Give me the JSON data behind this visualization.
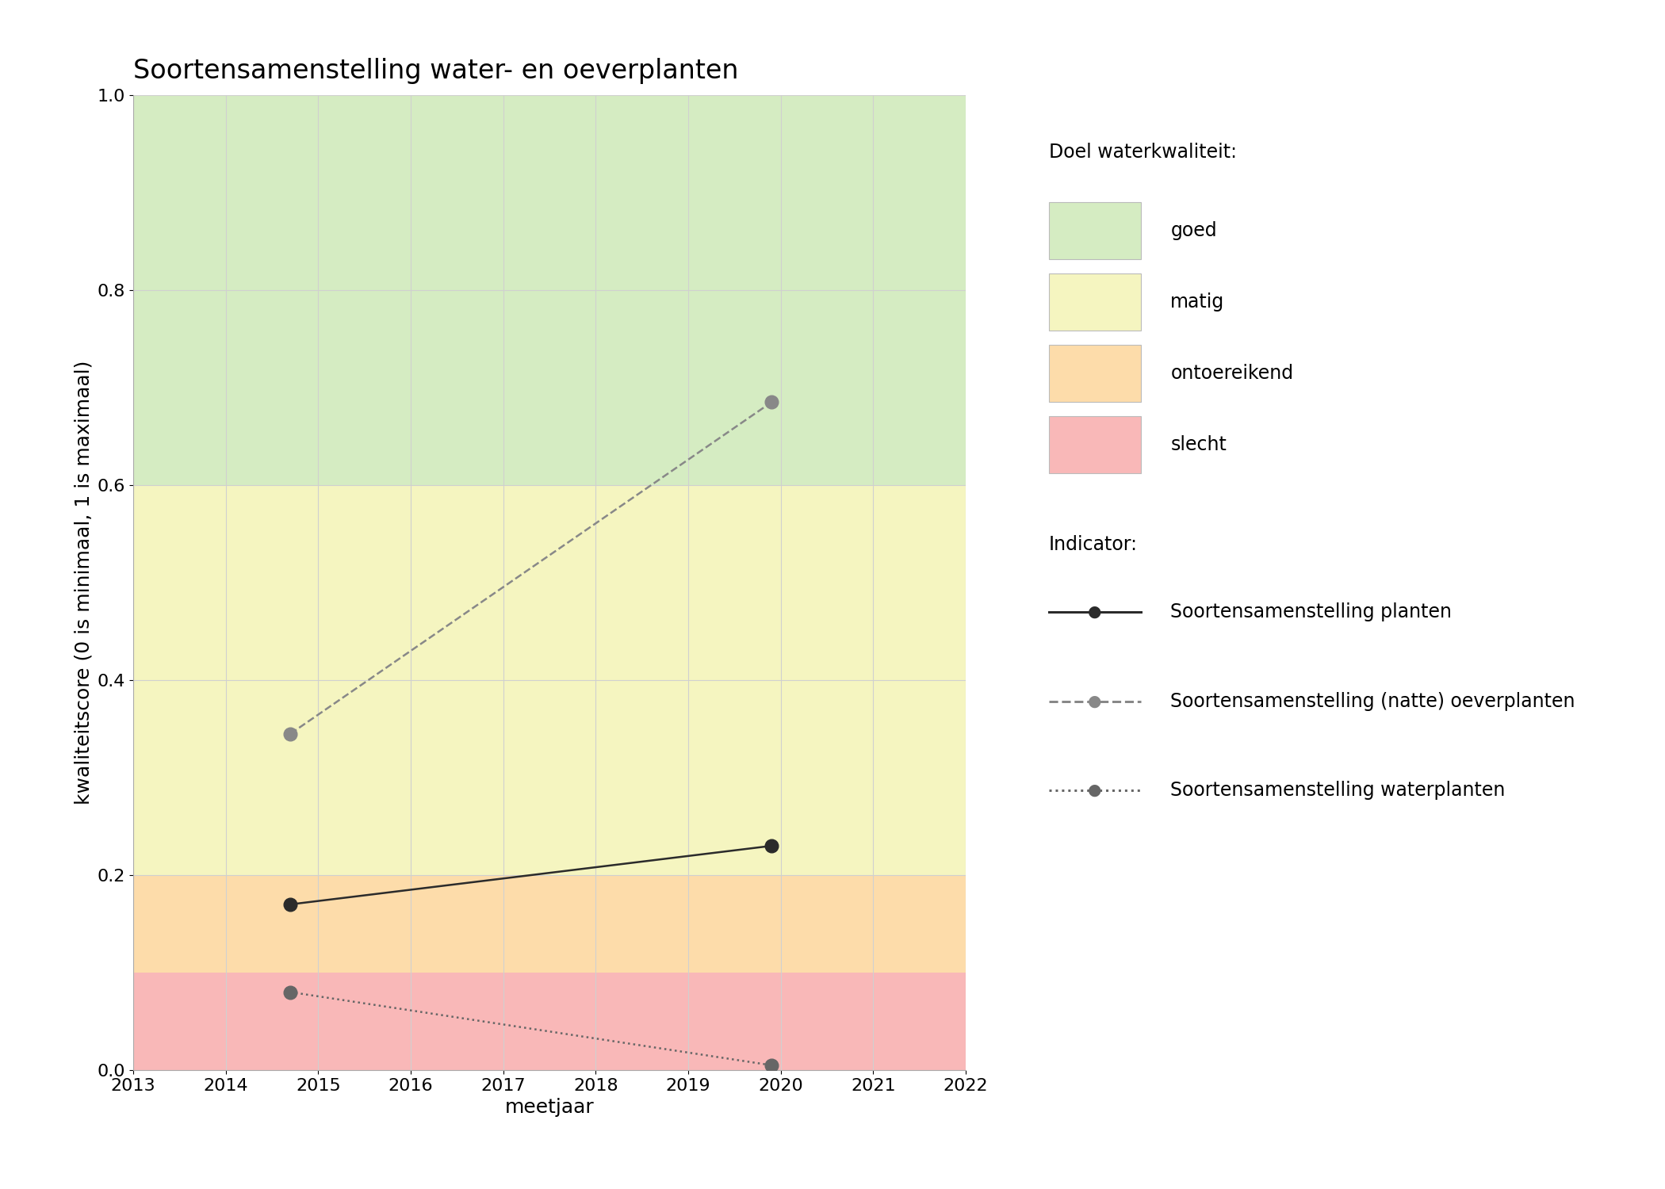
{
  "title": "Soortensamenstelling water- en oeverplanten",
  "xlabel": "meetjaar",
  "ylabel": "kwaliteitscore (0 is minimaal, 1 is maximaal)",
  "xlim": [
    2013,
    2022
  ],
  "ylim": [
    0.0,
    1.0
  ],
  "xticks": [
    2013,
    2014,
    2015,
    2016,
    2017,
    2018,
    2019,
    2020,
    2021,
    2022
  ],
  "yticks": [
    0.0,
    0.2,
    0.4,
    0.6,
    0.8,
    1.0
  ],
  "bg_colors": [
    {
      "name": "goed",
      "ymin": 0.6,
      "ymax": 1.0,
      "color": "#d5ecc2"
    },
    {
      "name": "matig",
      "ymin": 0.2,
      "ymax": 0.6,
      "color": "#f5f5c0"
    },
    {
      "name": "ontoereikend",
      "ymin": 0.1,
      "ymax": 0.2,
      "color": "#fddcaa"
    },
    {
      "name": "slecht",
      "ymin": 0.0,
      "ymax": 0.1,
      "color": "#f9b8b8"
    }
  ],
  "series": {
    "planten": {
      "x": [
        2014.7,
        2019.9
      ],
      "y": [
        0.17,
        0.23
      ],
      "color": "#2b2b2b",
      "linestyle": "solid",
      "marker": "o",
      "markersize": 12,
      "linewidth": 1.8,
      "label": "Soortensamenstelling planten"
    },
    "oeverplanten": {
      "x": [
        2014.7,
        2019.9
      ],
      "y": [
        0.345,
        0.685
      ],
      "color": "#888888",
      "linestyle": "dashed",
      "marker": "o",
      "markersize": 12,
      "linewidth": 1.8,
      "label": "Soortensamenstelling (natte) oeverplanten"
    },
    "waterplanten": {
      "x": [
        2014.7,
        2019.9
      ],
      "y": [
        0.08,
        0.005
      ],
      "color": "#666666",
      "linestyle": "dotted",
      "marker": "o",
      "markersize": 12,
      "linewidth": 1.8,
      "label": "Soortensamenstelling waterplanten"
    }
  },
  "legend_title_doel": "Doel waterkwaliteit:",
  "legend_title_indicator": "Indicator:",
  "legend_doel_items": [
    {
      "label": "goed",
      "color": "#d5ecc2"
    },
    {
      "label": "matig",
      "color": "#f5f5c0"
    },
    {
      "label": "ontoereikend",
      "color": "#fddcaa"
    },
    {
      "label": "slecht",
      "color": "#f9b8b8"
    }
  ],
  "background_color": "#ffffff",
  "grid_color": "#d0d0d0",
  "title_fontsize": 24,
  "axis_label_fontsize": 18,
  "tick_fontsize": 16,
  "legend_fontsize": 17
}
